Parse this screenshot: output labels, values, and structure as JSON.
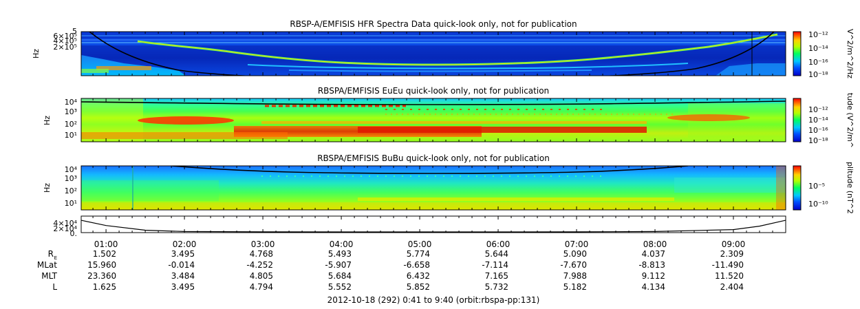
{
  "chart_data": [
    {
      "type": "heatmap",
      "title": "RBSP-A/EMFISIS  HFR Spectra Data quick-look only, not for publication",
      "ylabel": "Hz",
      "yticks": [
        "6×10⁵",
        "4×10⁵",
        "2×10⁵",
        "5"
      ],
      "colorbar_label": "V^2/m^2/Hz",
      "colorbar_ticks": [
        "10⁻¹²",
        "10⁻¹⁴",
        "10⁻¹⁶",
        "10⁻¹⁸"
      ],
      "colorbar_range_log": [
        -18,
        -12
      ]
    },
    {
      "type": "heatmap",
      "title": "RBSPA/EMFISIS  EuEu quick-look only, not for publication",
      "ylabel": "Hz",
      "yticks": [
        "10⁴",
        "10³",
        "10²",
        "10¹"
      ],
      "colorbar_label": "tude (V^2/m^",
      "colorbar_ticks": [
        "10⁻¹²",
        "10⁻¹⁴",
        "10⁻¹⁶",
        "10⁻¹⁸"
      ],
      "colorbar_range_log": [
        -18,
        -12
      ]
    },
    {
      "type": "heatmap",
      "title": "RBSPA/EMFISIS  BuBu quick-look only, not for publication",
      "ylabel": "Hz",
      "yticks": [
        "10⁴",
        "10³",
        "10²",
        "10¹"
      ],
      "colorbar_label": "plitude (nT^2",
      "colorbar_ticks": [
        "10⁻⁵",
        "10⁻¹⁰"
      ],
      "colorbar_range_log": [
        -12,
        -3
      ]
    },
    {
      "type": "line",
      "yticks": [
        "4×10⁴",
        "2×10⁴",
        "0."
      ],
      "x": [
        "00:41",
        "01:00",
        "01:30",
        "02:00",
        "03:00",
        "04:00",
        "05:00",
        "06:00",
        "07:00",
        "08:00",
        "09:00",
        "09:20",
        "09:40"
      ],
      "values": [
        40000,
        22000,
        6000,
        1500,
        300,
        100,
        50,
        100,
        300,
        1500,
        8000,
        20000,
        40000
      ]
    }
  ],
  "time_ticks": [
    "01:00",
    "02:00",
    "03:00",
    "04:00",
    "05:00",
    "06:00",
    "07:00",
    "08:00",
    "09:00"
  ],
  "ephemeris": {
    "row_labels": [
      "R",
      "MLat",
      "MLT",
      "L"
    ],
    "rows": [
      [
        "1.502",
        "3.495",
        "4.768",
        "5.493",
        "5.774",
        "5.644",
        "5.090",
        "4.037",
        "2.309"
      ],
      [
        "15.960",
        "-0.014",
        "-4.252",
        "-5.907",
        "-6.658",
        "-7.114",
        "-7.670",
        "-8.813",
        "-11.490"
      ],
      [
        "23.360",
        "3.484",
        "4.805",
        "5.684",
        "6.432",
        "7.165",
        "7.988",
        "9.112",
        "11.520"
      ],
      [
        "1.625",
        "3.495",
        "4.794",
        "5.552",
        "5.852",
        "5.732",
        "5.182",
        "4.134",
        "2.404"
      ]
    ]
  },
  "footer": "2012-10-18 (292) 0:41 to 9:40 (orbit:rbspa-pp:131)"
}
